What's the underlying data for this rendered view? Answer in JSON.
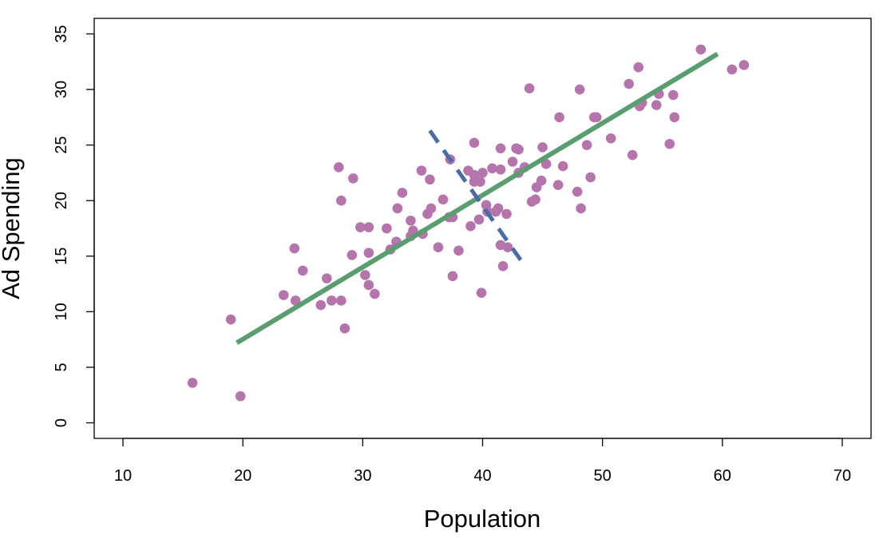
{
  "chart_data": {
    "type": "scatter",
    "title": "",
    "xlabel": "Population",
    "ylabel": "Ad Spending",
    "xlim": [
      7.6,
      72.4
    ],
    "ylim": [
      -1.4,
      36.4
    ],
    "x_ticks": [
      10,
      20,
      30,
      40,
      50,
      60,
      70
    ],
    "y_ticks": [
      0,
      5,
      10,
      15,
      20,
      25,
      30,
      35
    ],
    "grid": false,
    "legend": "none",
    "colors": {
      "points": "#b574ab",
      "fit_line": "#5a9e70",
      "dashed_line": "#4a6aa8"
    },
    "points": [
      [
        15.8,
        3.6
      ],
      [
        19.8,
        2.4
      ],
      [
        19.0,
        9.3
      ],
      [
        24.3,
        15.7
      ],
      [
        25.0,
        13.7
      ],
      [
        24.4,
        11.0
      ],
      [
        23.4,
        11.5
      ],
      [
        26.5,
        10.6
      ],
      [
        27.4,
        11.0
      ],
      [
        28.2,
        11.0
      ],
      [
        28.5,
        8.5
      ],
      [
        27.0,
        13.0
      ],
      [
        28.0,
        23.0
      ],
      [
        28.2,
        20.0
      ],
      [
        29.2,
        22.0
      ],
      [
        29.1,
        15.1
      ],
      [
        29.8,
        17.6
      ],
      [
        30.5,
        17.6
      ],
      [
        30.5,
        15.3
      ],
      [
        30.2,
        13.3
      ],
      [
        30.5,
        12.4
      ],
      [
        31.0,
        11.6
      ],
      [
        32.0,
        17.5
      ],
      [
        32.3,
        15.6
      ],
      [
        32.8,
        16.3
      ],
      [
        32.9,
        19.3
      ],
      [
        33.3,
        20.7
      ],
      [
        34.0,
        18.2
      ],
      [
        34.2,
        17.3
      ],
      [
        34.0,
        16.8
      ],
      [
        35.0,
        17.0
      ],
      [
        34.9,
        22.7
      ],
      [
        35.6,
        21.9
      ],
      [
        35.4,
        18.8
      ],
      [
        35.7,
        19.3
      ],
      [
        36.3,
        15.8
      ],
      [
        36.7,
        20.1
      ],
      [
        37.3,
        23.7
      ],
      [
        37.2,
        18.5
      ],
      [
        37.5,
        18.5
      ],
      [
        37.5,
        13.2
      ],
      [
        38.0,
        15.5
      ],
      [
        38.8,
        22.7
      ],
      [
        39.0,
        17.7
      ],
      [
        39.3,
        25.2
      ],
      [
        39.3,
        22.3
      ],
      [
        39.3,
        21.7
      ],
      [
        39.8,
        21.7
      ],
      [
        39.7,
        18.3
      ],
      [
        40.0,
        22.5
      ],
      [
        39.9,
        11.7
      ],
      [
        40.3,
        19.6
      ],
      [
        40.4,
        19.0
      ],
      [
        40.8,
        22.9
      ],
      [
        41.1,
        19.0
      ],
      [
        41.3,
        19.3
      ],
      [
        41.5,
        24.7
      ],
      [
        41.5,
        22.8
      ],
      [
        41.5,
        16.0
      ],
      [
        41.7,
        14.1
      ],
      [
        42.0,
        18.8
      ],
      [
        42.1,
        15.8
      ],
      [
        42.5,
        23.5
      ],
      [
        42.8,
        24.7
      ],
      [
        43.0,
        24.6
      ],
      [
        43.0,
        22.5
      ],
      [
        43.5,
        23.0
      ],
      [
        43.9,
        30.1
      ],
      [
        44.1,
        19.9
      ],
      [
        44.4,
        20.1
      ],
      [
        44.5,
        21.2
      ],
      [
        44.9,
        21.8
      ],
      [
        45.0,
        24.8
      ],
      [
        45.3,
        23.3
      ],
      [
        46.3,
        21.4
      ],
      [
        46.4,
        27.5
      ],
      [
        46.7,
        23.1
      ],
      [
        47.9,
        20.8
      ],
      [
        48.1,
        30.0
      ],
      [
        48.2,
        19.3
      ],
      [
        48.7,
        25.0
      ],
      [
        49.0,
        22.1
      ],
      [
        49.3,
        27.5
      ],
      [
        49.5,
        27.5
      ],
      [
        50.7,
        25.6
      ],
      [
        52.2,
        30.5
      ],
      [
        52.5,
        24.1
      ],
      [
        53.0,
        32.0
      ],
      [
        53.1,
        28.5
      ],
      [
        53.3,
        28.8
      ],
      [
        54.5,
        28.6
      ],
      [
        54.7,
        29.6
      ],
      [
        55.6,
        25.1
      ],
      [
        55.9,
        29.5
      ],
      [
        56.0,
        27.5
      ],
      [
        58.2,
        33.6
      ],
      [
        60.8,
        31.8
      ],
      [
        61.8,
        32.2
      ]
    ],
    "fit_line": {
      "x": [
        19.5,
        59.6
      ],
      "y": [
        7.2,
        33.2
      ]
    },
    "dashed_line": {
      "x": [
        35.6,
        43.6
      ],
      "y": [
        26.3,
        14.0
      ]
    }
  }
}
